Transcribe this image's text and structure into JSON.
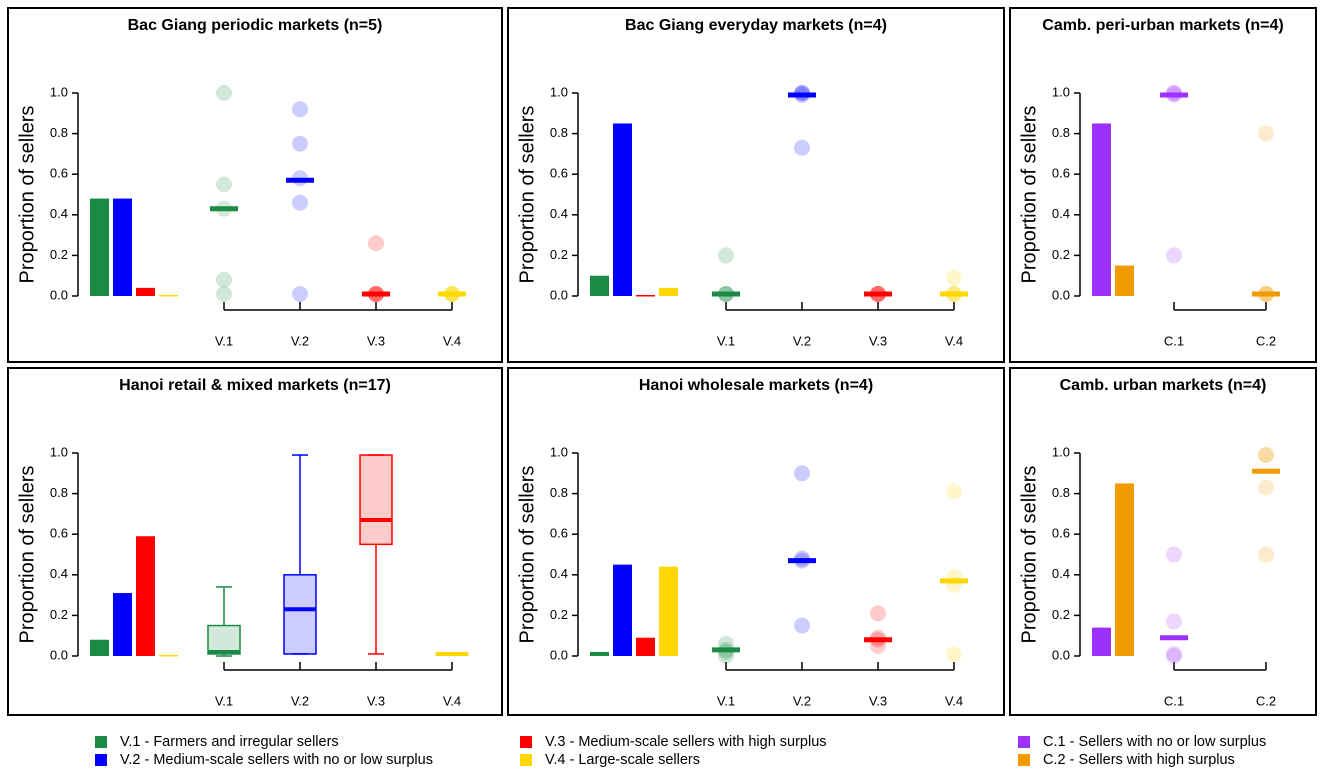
{
  "chart_data": [
    {
      "type": "dot",
      "title": "Bac Giang periodic markets (n=5)",
      "ylabel": "Proportion of sellers",
      "categories": [
        "V.1",
        "V.2",
        "V.3",
        "V.4"
      ],
      "colors": [
        "#1a8a45",
        "#0000ff",
        "#ff0000",
        "#ffd700"
      ],
      "bars": [
        0.48,
        0.48,
        0.04,
        0.005
      ],
      "points": [
        [
          1.0,
          0.55,
          0.43,
          0.08,
          0.01
        ],
        [
          0.92,
          0.75,
          0.58,
          0.46,
          0.01
        ],
        [
          0.26,
          0.01,
          0.01,
          0.01,
          0.01
        ],
        [
          0.01,
          0.01,
          0.01,
          0.01,
          0.01
        ]
      ],
      "medians": [
        0.43,
        0.57,
        0.01,
        0.01
      ],
      "ylim": [
        0,
        1
      ],
      "yticks": [
        {
          "value": 0,
          "label": "0.0"
        },
        {
          "value": 0.2,
          "label": "0.2"
        },
        {
          "value": 0.4,
          "label": "0.4"
        },
        {
          "value": 0.6,
          "label": "0.6"
        },
        {
          "value": 0.8,
          "label": "0.8"
        },
        {
          "value": 1,
          "label": "1.0"
        }
      ]
    },
    {
      "type": "dot",
      "title": "Bac Giang everyday markets (n=4)",
      "ylabel": "Proportion of sellers",
      "categories": [
        "V.1",
        "V.2",
        "V.3",
        "V.4"
      ],
      "colors": [
        "#1a8a45",
        "#0000ff",
        "#ff0000",
        "#ffd700"
      ],
      "bars": [
        0.1,
        0.85,
        0.005,
        0.04
      ],
      "points": [
        [
          0.2,
          0.01,
          0.01,
          0.01
        ],
        [
          1.0,
          1.0,
          0.99,
          0.73
        ],
        [
          0.01,
          0.01,
          0.01,
          0.01
        ],
        [
          0.09,
          0.01,
          0.01,
          0.01
        ]
      ],
      "medians": [
        0.01,
        0.99,
        0.01,
        0.01
      ],
      "ylim": [
        0,
        1
      ],
      "yticks": [
        {
          "value": 0,
          "label": "0.0"
        },
        {
          "value": 0.2,
          "label": "0.2"
        },
        {
          "value": 0.4,
          "label": "0.4"
        },
        {
          "value": 0.6,
          "label": "0.6"
        },
        {
          "value": 0.8,
          "label": "0.8"
        },
        {
          "value": 1,
          "label": "1.0"
        }
      ]
    },
    {
      "type": "dot",
      "title": "Camb. peri-urban markets (n=4)",
      "ylabel": "Proportion of sellers",
      "categories": [
        "C.1",
        "C.2"
      ],
      "colors": [
        "#9b30ff",
        "#f29b00"
      ],
      "bars": [
        0.85,
        0.15
      ],
      "points": [
        [
          1.0,
          1.0,
          0.99,
          0.2
        ],
        [
          0.8,
          0.01,
          0.01,
          0.01
        ]
      ],
      "medians": [
        0.99,
        0.01
      ],
      "ylim": [
        0,
        1
      ],
      "yticks": [
        {
          "value": 0,
          "label": "0.0"
        },
        {
          "value": 0.2,
          "label": "0.2"
        },
        {
          "value": 0.4,
          "label": "0.4"
        },
        {
          "value": 0.6,
          "label": "0.6"
        },
        {
          "value": 0.8,
          "label": "0.8"
        },
        {
          "value": 1,
          "label": "1.0"
        }
      ]
    },
    {
      "type": "box",
      "title": "Hanoi retail & mixed markets (n=17)",
      "ylabel": "Proportion of sellers",
      "categories": [
        "V.1",
        "V.2",
        "V.3",
        "V.4"
      ],
      "colors": [
        "#1a8a45",
        "#0000ff",
        "#ff0000",
        "#ffd700"
      ],
      "bars": [
        0.08,
        0.31,
        0.59,
        0.005
      ],
      "boxes": [
        {
          "low": 0,
          "q1": 0.01,
          "median": 0.02,
          "q3": 0.15,
          "high": 0.34
        },
        {
          "low": 0.01,
          "q1": 0.01,
          "median": 0.23,
          "q3": 0.4,
          "high": 0.99
        },
        {
          "low": 0.01,
          "q1": 0.55,
          "median": 0.67,
          "q3": 0.99,
          "high": 0.99
        },
        {
          "low": 0.01,
          "q1": 0.01,
          "median": 0.01,
          "q3": 0.01,
          "high": 0.01
        }
      ],
      "ylim": [
        0,
        1
      ],
      "yticks": [
        {
          "value": 0,
          "label": "0.0"
        },
        {
          "value": 0.2,
          "label": "0.2"
        },
        {
          "value": 0.4,
          "label": "0.4"
        },
        {
          "value": 0.6,
          "label": "0.6"
        },
        {
          "value": 0.8,
          "label": "0.8"
        },
        {
          "value": 1,
          "label": "1.0"
        }
      ]
    },
    {
      "type": "dot",
      "title": "Hanoi wholesale markets (n=4)",
      "ylabel": "Proportion of sellers",
      "categories": [
        "V.1",
        "V.2",
        "V.3",
        "V.4"
      ],
      "colors": [
        "#1a8a45",
        "#0000ff",
        "#ff0000",
        "#ffd700"
      ],
      "bars": [
        0.02,
        0.45,
        0.09,
        0.44
      ],
      "points": [
        [
          0.06,
          0.03,
          0.02,
          0.0
        ],
        [
          0.9,
          0.48,
          0.47,
          0.15
        ],
        [
          0.21,
          0.09,
          0.08,
          0.05
        ],
        [
          0.81,
          0.39,
          0.35,
          0.01
        ]
      ],
      "medians": [
        0.03,
        0.47,
        0.08,
        0.37
      ],
      "ylim": [
        0,
        1
      ],
      "yticks": [
        {
          "value": 0,
          "label": "0.0"
        },
        {
          "value": 0.2,
          "label": "0.2"
        },
        {
          "value": 0.4,
          "label": "0.4"
        },
        {
          "value": 0.6,
          "label": "0.6"
        },
        {
          "value": 0.8,
          "label": "0.8"
        },
        {
          "value": 1,
          "label": "1.0"
        }
      ]
    },
    {
      "type": "dot",
      "title": "Camb. urban markets (n=4)",
      "ylabel": "Proportion of sellers",
      "categories": [
        "C.1",
        "C.2"
      ],
      "colors": [
        "#9b30ff",
        "#f29b00"
      ],
      "bars": [
        0.14,
        0.85
      ],
      "points": [
        [
          0.5,
          0.17,
          0.01,
          0.0
        ],
        [
          0.99,
          0.99,
          0.83,
          0.5
        ]
      ],
      "medians": [
        0.09,
        0.91
      ],
      "ylim": [
        0,
        1
      ],
      "yticks": [
        {
          "value": 0,
          "label": "0.0"
        },
        {
          "value": 0.2,
          "label": "0.2"
        },
        {
          "value": 0.4,
          "label": "0.4"
        },
        {
          "value": 0.6,
          "label": "0.6"
        },
        {
          "value": 0.8,
          "label": "0.8"
        },
        {
          "value": 1,
          "label": "1.0"
        }
      ]
    }
  ],
  "legend": [
    {
      "label": "V.1 - Farmers and irregular sellers",
      "color": "#1a8a45"
    },
    {
      "label": "V.2 - Medium-scale sellers with no or low surplus",
      "color": "#0000ff"
    },
    {
      "label": "V.3 - Medium-scale sellers with high surplus",
      "color": "#ff0000"
    },
    {
      "label": "V.4 - Large-scale sellers",
      "color": "#ffd700"
    },
    {
      "label": "C.1 - Sellers with no or low surplus",
      "color": "#9b30ff"
    },
    {
      "label": "C.2 - Sellers with high surplus",
      "color": "#f29b00"
    }
  ]
}
